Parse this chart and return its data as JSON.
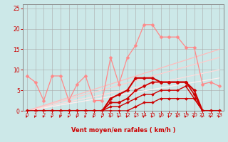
{
  "xlabel": "Vent moyen/en rafales ( km/h )",
  "bg_color": "#cce8e8",
  "grid_color": "#aaaaaa",
  "x_values": [
    0,
    1,
    2,
    3,
    4,
    5,
    6,
    7,
    8,
    9,
    10,
    11,
    12,
    13,
    14,
    15,
    16,
    17,
    18,
    19,
    20,
    21,
    22,
    23
  ],
  "pink_line": {
    "y": [
      8.5,
      7.0,
      2.5,
      8.5,
      8.5,
      2.5,
      6.5,
      8.5,
      2.5,
      2.5,
      13.0,
      6.5,
      13.0,
      16.0,
      21.0,
      21.0,
      18.0,
      18.0,
      18.0,
      15.5,
      15.5,
      6.5,
      7.0,
      6.0
    ],
    "color": "#ff8888",
    "lw": 0.9,
    "ms": 2.5
  },
  "red_line1": {
    "y": [
      0,
      0,
      0,
      0,
      0,
      0,
      0,
      0,
      0,
      0,
      0,
      0,
      0,
      1,
      2,
      2,
      3,
      3,
      3,
      3,
      3,
      0,
      0,
      0
    ],
    "color": "#cc0000",
    "lw": 1.0,
    "ms": 2.0
  },
  "red_line2": {
    "y": [
      0,
      0,
      0,
      0,
      0,
      0,
      0,
      0,
      0,
      0,
      1,
      1,
      2,
      3,
      4,
      4,
      5,
      5,
      5,
      6,
      3,
      0,
      0,
      0
    ],
    "color": "#cc0000",
    "lw": 1.0,
    "ms": 2.0
  },
  "red_line3": {
    "y": [
      0,
      0,
      0,
      0,
      0,
      0,
      0,
      0,
      0,
      0,
      2,
      2,
      3,
      5,
      6,
      7,
      7,
      7,
      7,
      7,
      4,
      0,
      0,
      0
    ],
    "color": "#cc0000",
    "lw": 1.2,
    "ms": 2.5
  },
  "red_line4": {
    "y": [
      0,
      0,
      0,
      0,
      0,
      0,
      0,
      0,
      0,
      0,
      3,
      4,
      5,
      8,
      8,
      8,
      7,
      7,
      7,
      7,
      5,
      0,
      0,
      0
    ],
    "color": "#cc0000",
    "lw": 1.5,
    "ms": 2.5
  },
  "linear_lines": [
    {
      "x": [
        0,
        23
      ],
      "y": [
        0,
        15
      ],
      "color": "#ffbbbb",
      "lw": 0.9
    },
    {
      "x": [
        0,
        23
      ],
      "y": [
        0,
        13
      ],
      "color": "#ffcccc",
      "lw": 0.9
    },
    {
      "x": [
        0,
        23
      ],
      "y": [
        0,
        10
      ],
      "color": "#ffdddd",
      "lw": 0.9
    },
    {
      "x": [
        0,
        23
      ],
      "y": [
        0,
        8
      ],
      "color": "#ffeeee",
      "lw": 0.9
    }
  ],
  "ylim": [
    0,
    26
  ],
  "yticks": [
    0,
    5,
    10,
    15,
    20,
    25
  ],
  "xlim": [
    -0.5,
    23.5
  ],
  "xticks": [
    0,
    1,
    2,
    3,
    4,
    5,
    6,
    7,
    8,
    9,
    10,
    11,
    12,
    13,
    14,
    15,
    16,
    17,
    18,
    19,
    20,
    21,
    22,
    23
  ],
  "xlabel_color": "#cc0000",
  "tick_color": "#cc0000",
  "axis_color": "#888888",
  "arrow_color": "#cc0000"
}
